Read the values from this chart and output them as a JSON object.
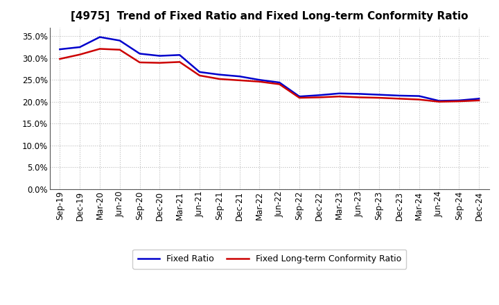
{
  "title": "[4975]  Trend of Fixed Ratio and Fixed Long-term Conformity Ratio",
  "x_labels": [
    "Sep-19",
    "Dec-19",
    "Mar-20",
    "Jun-20",
    "Sep-20",
    "Dec-20",
    "Mar-21",
    "Jun-21",
    "Sep-21",
    "Dec-21",
    "Mar-22",
    "Jun-22",
    "Sep-22",
    "Dec-22",
    "Mar-23",
    "Jun-23",
    "Sep-23",
    "Dec-23",
    "Mar-24",
    "Jun-24",
    "Sep-24",
    "Dec-24"
  ],
  "fixed_ratio": [
    0.32,
    0.325,
    0.348,
    0.34,
    0.31,
    0.305,
    0.307,
    0.268,
    0.262,
    0.258,
    0.25,
    0.244,
    0.212,
    0.215,
    0.219,
    0.218,
    0.216,
    0.214,
    0.213,
    0.202,
    0.203,
    0.207
  ],
  "fixed_lt_ratio": [
    0.298,
    0.308,
    0.321,
    0.319,
    0.29,
    0.289,
    0.291,
    0.26,
    0.252,
    0.249,
    0.246,
    0.24,
    0.209,
    0.21,
    0.212,
    0.21,
    0.209,
    0.207,
    0.205,
    0.2,
    0.201,
    0.203
  ],
  "fixed_ratio_color": "#0000CC",
  "fixed_lt_ratio_color": "#CC0000",
  "ylim": [
    0.0,
    0.37
  ],
  "yticks": [
    0.0,
    0.05,
    0.1,
    0.15,
    0.2,
    0.25,
    0.3,
    0.35
  ],
  "background_color": "#FFFFFF",
  "plot_bg_color": "#FFFFFF",
  "grid_color": "#BBBBBB",
  "legend_fixed": "Fixed Ratio",
  "legend_lt": "Fixed Long-term Conformity Ratio",
  "line_width": 1.8,
  "title_fontsize": 11,
  "tick_fontsize": 8.5,
  "ytick_fontsize": 8.5
}
